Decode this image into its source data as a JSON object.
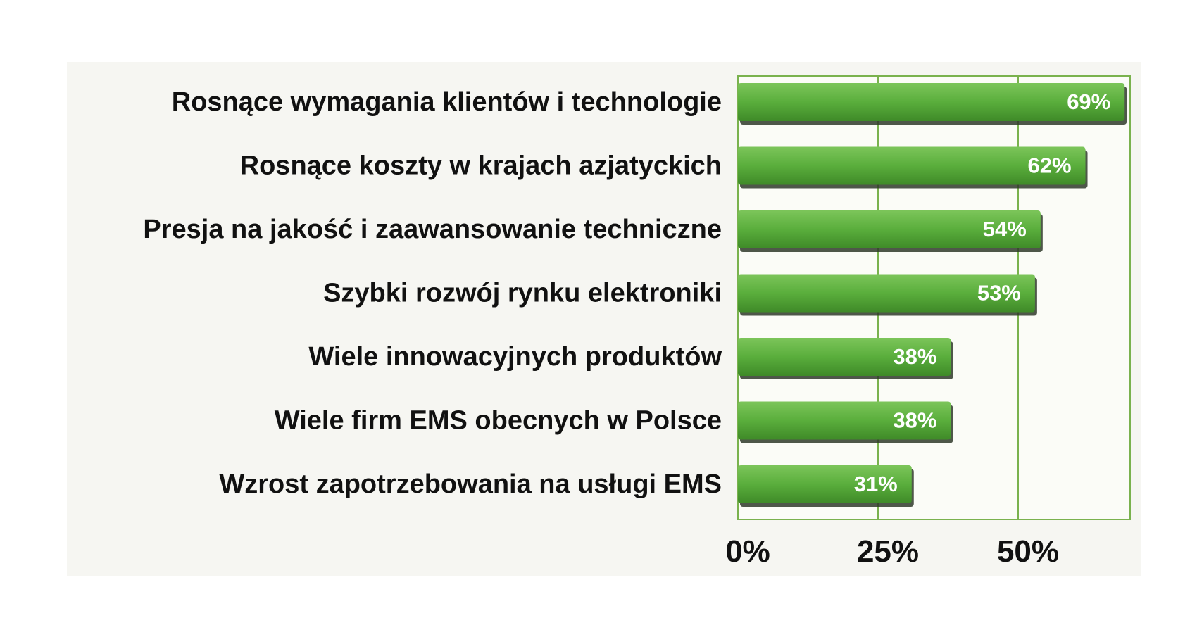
{
  "chart_data": {
    "type": "bar",
    "orientation": "horizontal",
    "categories": [
      "Rosnące wymagania klientów i technologie",
      "Rosnące koszty w krajach azjatyckich",
      "Presja na jakość i zaawansowanie techniczne",
      "Szybki rozwój rynku elektroniki",
      "Wiele innowacyjnych produktów",
      "Wiele firm EMS obecnych w Polsce",
      "Wzrost zapotrzebowania na usługi EMS"
    ],
    "values": [
      69,
      62,
      54,
      53,
      38,
      38,
      31
    ],
    "value_labels": [
      "69%",
      "62%",
      "54%",
      "53%",
      "38%",
      "38%",
      "31%"
    ],
    "x_ticks": [
      0,
      25,
      50
    ],
    "x_tick_labels": [
      "0%",
      "25%",
      "50%"
    ],
    "xlim": [
      0,
      70
    ],
    "grid": true,
    "colors": {
      "bar": "#5aae3c",
      "bar_light": "#7cc55a",
      "bar_dark": "#3f8a28",
      "bar_shadow": "#2f3a2a",
      "grid": "#7ab24e",
      "plot_bg": "#fbfcf7",
      "panel_bg": "#f6f6f2",
      "text": "#111111",
      "value_text": "#ffffff"
    }
  }
}
